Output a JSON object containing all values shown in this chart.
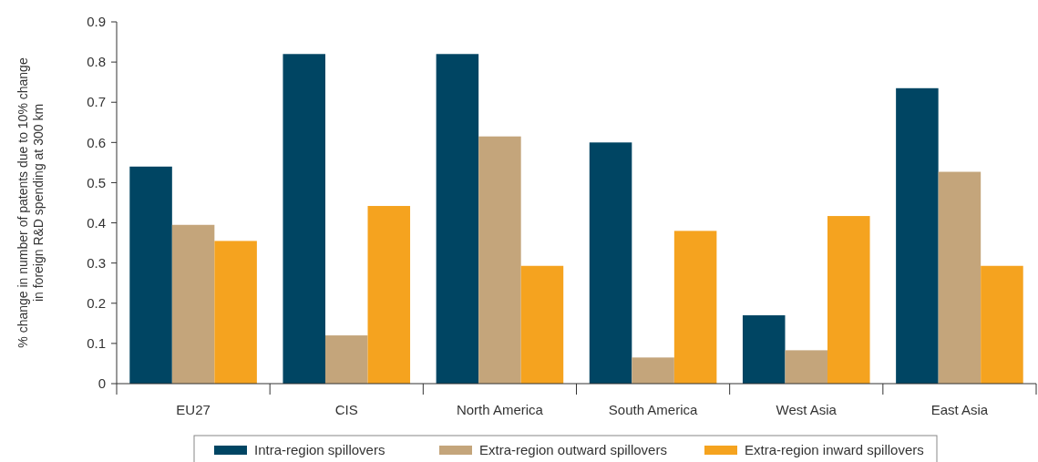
{
  "chart_data": {
    "type": "bar",
    "ylabel": "% change in number of patents due to 10% change\nin foreign R&D spending at 300 km",
    "categories": [
      "EU27",
      "CIS",
      "North America",
      "South America",
      "West Asia",
      "East Asia"
    ],
    "series": [
      {
        "name": "Intra-region spillovers",
        "color": "#004563",
        "values": [
          0.54,
          0.82,
          0.82,
          0.6,
          0.17,
          0.735
        ]
      },
      {
        "name": "Extra-region outward spillovers",
        "color": "#c4a57b",
        "values": [
          0.395,
          0.12,
          0.615,
          0.065,
          0.083,
          0.527
        ]
      },
      {
        "name": "Extra-region inward spillovers",
        "color": "#f5a31f",
        "values": [
          0.355,
          0.442,
          0.293,
          0.38,
          0.417,
          0.293
        ]
      }
    ],
    "ylim": [
      0,
      0.9
    ],
    "yticks": [
      0,
      0.1,
      0.2,
      0.3,
      0.4,
      0.5,
      0.6,
      0.7,
      0.8,
      0.9
    ],
    "grid": false,
    "legend": "bottom"
  }
}
